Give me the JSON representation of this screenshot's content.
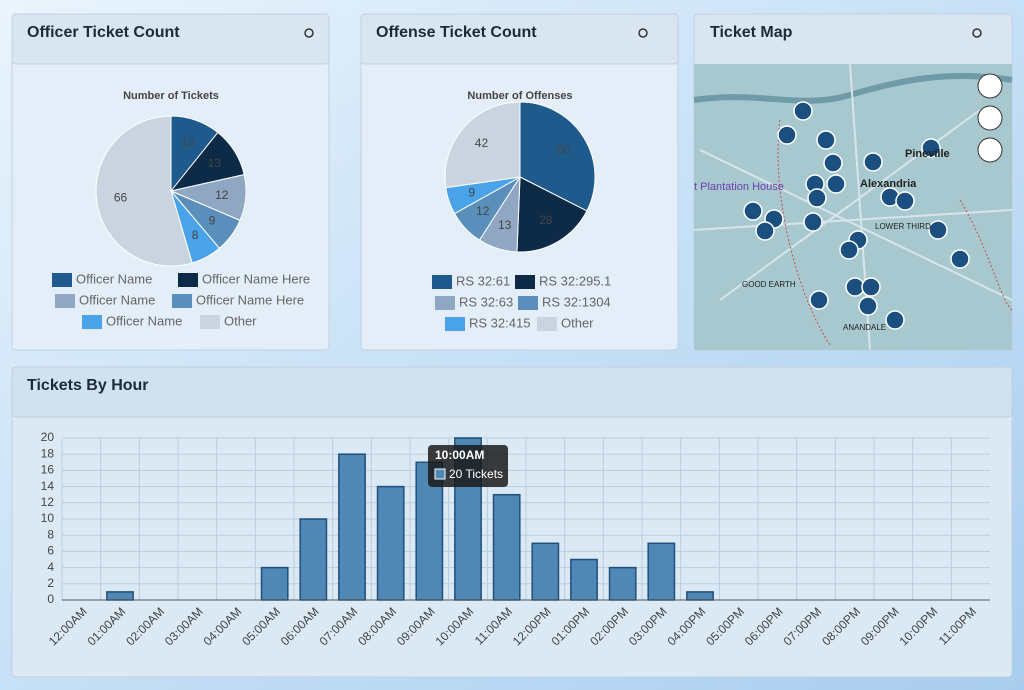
{
  "panels": {
    "officer": "Officer Ticket Count",
    "offense": "Offense Ticket Count",
    "map": "Ticket Map",
    "hourly": "Tickets By Hour"
  },
  "map_labels": [
    "Pineville",
    "Alexandria",
    "t Plantation House",
    "LOWER THIRD",
    "GOOD EARTH",
    "ANANDALE"
  ],
  "chart_data": [
    {
      "type": "pie",
      "title": "Number of Tickets",
      "categories": [
        "Officer Name",
        "Officer Name Here",
        "Officer Name",
        "Officer Name Here",
        "Officer Name",
        "Other"
      ],
      "values": [
        13,
        13,
        12,
        9,
        8,
        66
      ],
      "colors": [
        "#1f5a8c",
        "#0d2a47",
        "#8fa7c2",
        "#5b8fbb",
        "#4aa3e8",
        "#c9d4e0"
      ]
    },
    {
      "type": "pie",
      "title": "Number of Offenses",
      "categories": [
        "RS 32:61",
        "RS 32:295.1",
        "RS 32:63",
        "RS 32:1304",
        "RS 32:415",
        "Other"
      ],
      "values": [
        50,
        28,
        13,
        12,
        9,
        42
      ],
      "colors": [
        "#1f5a8c",
        "#0d2a47",
        "#8fa7c2",
        "#5b8fbb",
        "#4aa3e8",
        "#c9d4e0"
      ]
    },
    {
      "type": "bar",
      "categories": [
        "12:00AM",
        "01:00AM",
        "02:00AM",
        "03:00AM",
        "04:00AM",
        "05:00AM",
        "06:00AM",
        "07:00AM",
        "08:00AM",
        "09:00AM",
        "10:00AM",
        "11:00AM",
        "12:00PM",
        "01:00PM",
        "02:00PM",
        "03:00PM",
        "04:00PM",
        "05:00PM",
        "06:00PM",
        "07:00PM",
        "08:00PM",
        "09:00PM",
        "10:00PM",
        "11:00PM"
      ],
      "values": [
        0,
        1,
        0,
        0,
        0,
        4,
        10,
        18,
        14,
        17,
        20,
        13,
        7,
        5,
        4,
        7,
        1,
        0,
        0,
        0,
        0,
        0,
        0,
        0
      ],
      "color": "#4f87b5",
      "ylim": [
        0,
        20
      ],
      "yticks": [
        0,
        2,
        4,
        6,
        8,
        10,
        12,
        14,
        16,
        18,
        20
      ],
      "grid": true,
      "tooltip": {
        "index": 10,
        "text": "20 Tickets"
      }
    }
  ]
}
